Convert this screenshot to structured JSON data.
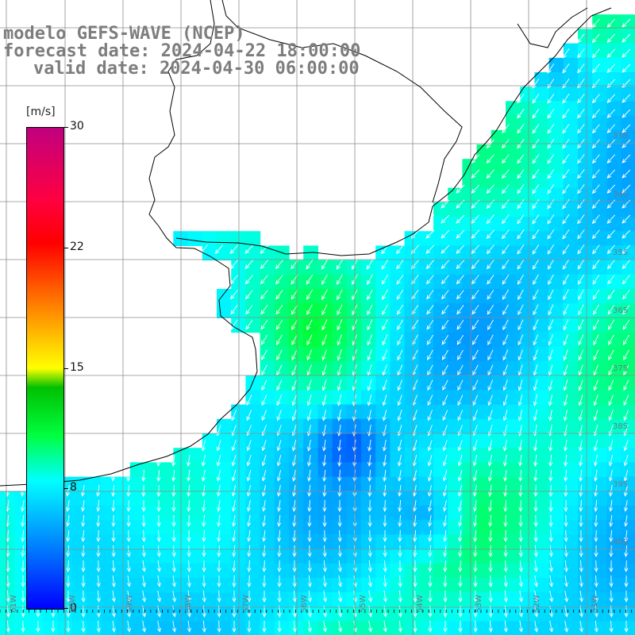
{
  "title": {
    "line1": "modelo GEFS-WAVE (NCEP)",
    "line2": "forecast date: 2024-04-22 18:00:00",
    "line3": "valid date: 2024-04-30 06:00:00"
  },
  "colorbar": {
    "unit": "[m/s]",
    "min": 0,
    "max": 30,
    "ticks": [
      "0",
      "8",
      "15",
      "22",
      "30"
    ],
    "tick_values": [
      0,
      8,
      15,
      22,
      30
    ]
  },
  "axes": {
    "lat_labels": [
      "33S",
      "34S",
      "35S",
      "36S",
      "37S",
      "38S",
      "39S",
      "40S"
    ],
    "lon_labels": [
      "61W",
      "60W",
      "59W",
      "58W",
      "57W",
      "56W",
      "55W",
      "54W",
      "53W",
      "52W",
      "51W"
    ]
  },
  "colors": {
    "land": "#ffffff",
    "coastline": "#000000",
    "grid": "#8c8c8c",
    "arrows": "#ffffff"
  }
}
